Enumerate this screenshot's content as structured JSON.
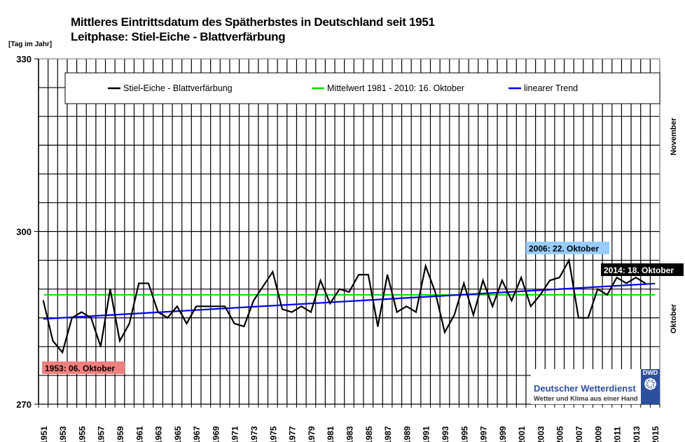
{
  "chart_data": {
    "type": "line",
    "title": "Mittleres Eintrittsdatum des Spätherbstes in Deutschland seit 1951",
    "subtitle": "Leitphase: Stiel-Eiche - Blattverfärbung",
    "ylabel": "[Tag im Jahr]",
    "ylim": [
      270,
      330
    ],
    "yticks": [
      270,
      300,
      330
    ],
    "xlim": [
      1951,
      2015
    ],
    "xticks": [
      "1951",
      "1953",
      "1955",
      "1957",
      "1959",
      "1961",
      "1963",
      "1965",
      "1967",
      "1969",
      "1971",
      "1973",
      "1975",
      "1977",
      "1979",
      "1981",
      "1983",
      "1985",
      "1987",
      "1989",
      "1991",
      "1993",
      "1995",
      "1997",
      "1999",
      "2001",
      "2003",
      "2005",
      "2007",
      "2009",
      "2011",
      "2013",
      "2015"
    ],
    "grid": true,
    "legend_position": "top",
    "month_labels": [
      "November",
      "Oktober"
    ],
    "x": [
      1951,
      1952,
      1953,
      1954,
      1955,
      1956,
      1957,
      1958,
      1959,
      1960,
      1961,
      1962,
      1963,
      1964,
      1965,
      1966,
      1967,
      1968,
      1969,
      1970,
      1971,
      1972,
      1973,
      1974,
      1975,
      1976,
      1977,
      1978,
      1979,
      1980,
      1981,
      1982,
      1983,
      1984,
      1985,
      1986,
      1987,
      1988,
      1989,
      1990,
      1991,
      1992,
      1993,
      1994,
      1995,
      1996,
      1997,
      1998,
      1999,
      2000,
      2001,
      2002,
      2003,
      2004,
      2005,
      2006,
      2007,
      2008,
      2009,
      2010,
      2011,
      2012,
      2013,
      2014
    ],
    "series": [
      {
        "name": "Stiel-Eiche - Blattverfärbung",
        "color": "#000000",
        "values": [
          288,
          281,
          279,
          285,
          286,
          285,
          280,
          290,
          281,
          284,
          291,
          291,
          286,
          285,
          287,
          284,
          287,
          287,
          287,
          287,
          284,
          283.5,
          288,
          290.5,
          293,
          286.5,
          286,
          287,
          286,
          291.5,
          287.5,
          290,
          289.5,
          292.5,
          292.5,
          283.5,
          292.5,
          286,
          287,
          286,
          294,
          289.5,
          282.5,
          285.5,
          291,
          285.5,
          291.5,
          287,
          291.5,
          288,
          292,
          287,
          289,
          291.5,
          292,
          295,
          285,
          285,
          290,
          289,
          292,
          291,
          292,
          291
        ]
      },
      {
        "name": "Mittelwert 1981 - 2010: 16. Oktober",
        "color": "#00e000",
        "value": 289
      },
      {
        "name": "linearer Trend",
        "color": "#0000ee"
      }
    ],
    "annotations": [
      {
        "text": "1953: 06. Oktober",
        "background": "#f08080"
      },
      {
        "text": "2006: 22. Oktober",
        "background": "#99ccff"
      },
      {
        "text": "2014: 18. Oktober",
        "background": "#000000"
      }
    ]
  },
  "logo": {
    "badge": "DWD",
    "name": "Deutscher Wetterdienst",
    "slogan": "Wetter und Klima aus einer Hand"
  }
}
